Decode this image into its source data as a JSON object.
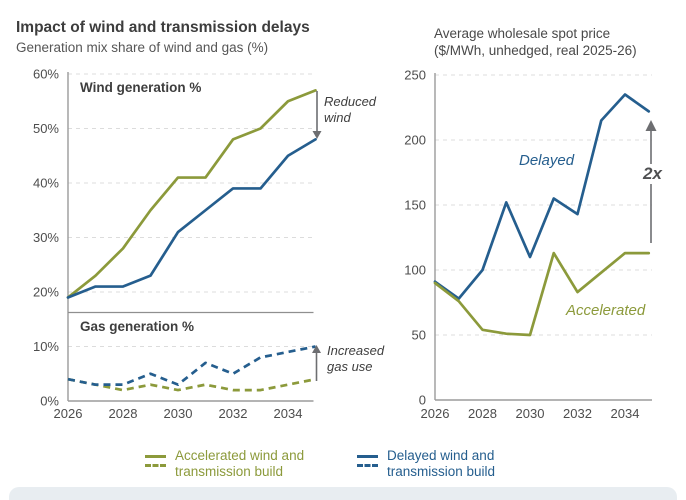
{
  "colors": {
    "accelerated": "#8C9A3B",
    "delayed": "#255E8E",
    "annotation_gray": "#6d6e71",
    "axis": "#9b9b9b",
    "grid": "#dcdcdc",
    "text_dark": "#3d3d3d",
    "bottom_bar": "#e8edf1"
  },
  "chart_data": [
    {
      "type": "line",
      "title": "Impact of wind and transmission delays",
      "subtitle": "Generation mix share of wind and gas (%)",
      "x": [
        2026,
        2027,
        2028,
        2029,
        2030,
        2031,
        2032,
        2033,
        2034,
        2035
      ],
      "x_tick_values": [
        2026,
        2028,
        2030,
        2032,
        2034
      ],
      "x_tick_labels": [
        "2026",
        "2028",
        "2030",
        "2032",
        "2034"
      ],
      "ylim": [
        0,
        60
      ],
      "y_tick_values": [
        0,
        10,
        20,
        30,
        40,
        50,
        60
      ],
      "y_tick_labels": [
        "0%",
        "10%",
        "20%",
        "30%",
        "40%",
        "50%",
        "60%"
      ],
      "grid": true,
      "legend_position": "bottom",
      "panel_labels": [
        "Wind generation %",
        "Gas generation %"
      ],
      "series": [
        {
          "key": "wind-accelerated",
          "name": "Accelerated wind and transmission build (wind share)",
          "color": "#8C9A3B",
          "dash": "solid",
          "values": [
            19,
            23,
            28,
            35,
            41,
            41,
            48,
            50,
            55,
            57
          ]
        },
        {
          "key": "wind-delayed",
          "name": "Delayed wind and transmission build (wind share)",
          "color": "#255E8E",
          "dash": "solid",
          "values": [
            19,
            21,
            21,
            23,
            31,
            35,
            39,
            39,
            45,
            48
          ]
        },
        {
          "key": "gas-accelerated",
          "name": "Accelerated wind and transmission build (gas share)",
          "color": "#8C9A3B",
          "dash": "dashed",
          "values": [
            4,
            3,
            2,
            3,
            2,
            3,
            2,
            2,
            3,
            4
          ]
        },
        {
          "key": "gas-delayed",
          "name": "Delayed wind and transmission build (gas share)",
          "color": "#255E8E",
          "dash": "dashed",
          "values": [
            4,
            3,
            3,
            5,
            3,
            7,
            5,
            8,
            9,
            10
          ]
        }
      ],
      "annotations": [
        {
          "text": "Reduced wind",
          "style": "italic"
        },
        {
          "text": "Increased gas use",
          "style": "italic"
        }
      ]
    },
    {
      "type": "line",
      "title": "Average wholesale spot price",
      "subtitle": "($/MWh, unhedged, real 2025-26)",
      "x": [
        2026,
        2027,
        2028,
        2029,
        2030,
        2031,
        2032,
        2033,
        2034,
        2035
      ],
      "x_tick_values": [
        2026,
        2028,
        2030,
        2032,
        2034
      ],
      "x_tick_labels": [
        "2026",
        "2028",
        "2030",
        "2032",
        "2034"
      ],
      "ylim": [
        0,
        250
      ],
      "y_tick_values": [
        0,
        50,
        100,
        150,
        200,
        250
      ],
      "y_tick_labels": [
        "0",
        "50",
        "100",
        "150",
        "200",
        "250"
      ],
      "grid": true,
      "series": [
        {
          "key": "price-delayed",
          "name": "Delayed",
          "color": "#255E8E",
          "dash": "solid",
          "values": [
            91,
            78,
            100,
            152,
            110,
            155,
            143,
            215,
            235,
            222
          ]
        },
        {
          "key": "price-accelerated",
          "name": "Accelerated",
          "color": "#8C9A3B",
          "dash": "solid",
          "values": [
            90,
            76,
            54,
            51,
            50,
            113,
            83,
            98,
            113,
            113
          ]
        }
      ],
      "annotations": [
        {
          "text": "Delayed",
          "style": "italic"
        },
        {
          "text": "Accelerated",
          "style": "italic"
        },
        {
          "text": "2x",
          "style": "bold-italic"
        }
      ]
    }
  ],
  "legend": {
    "items": [
      {
        "label": "Accelerated wind and transmission build",
        "color": "#8C9A3B",
        "swatches": [
          "solid",
          "dashed"
        ]
      },
      {
        "label": "Delayed wind and transmission build",
        "color": "#255E8E",
        "swatches": [
          "solid",
          "dashed"
        ]
      }
    ]
  }
}
